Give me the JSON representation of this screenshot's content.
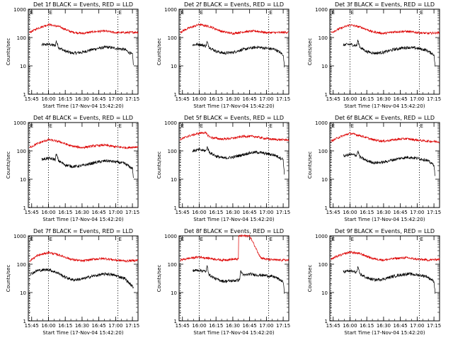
{
  "figure": {
    "xlabel": "Start Time (17-Nov-04 15:42:20)",
    "ylabel": "Counts/sec",
    "x_tick_labels": [
      "15:45",
      "16:00",
      "16:15",
      "16:30",
      "16:45",
      "17:00",
      "17:15"
    ],
    "y_tick_labels": [
      "1",
      "10",
      "100",
      "1000"
    ],
    "marker_label": "E",
    "colors": {
      "events": "#000000",
      "lld": "#dd0000",
      "frame": "#000000"
    }
  },
  "chart_data": [
    {
      "type": "line",
      "title": "Det 1f BLACK = Events, RED = LLD",
      "yscale": "log",
      "ylim": [
        1,
        1000
      ],
      "xlim": [
        "15:42",
        "17:20"
      ],
      "grid": false,
      "markers": [
        "15:43",
        "16:00",
        "17:02"
      ],
      "series": [
        {
          "name": "Events",
          "color": "#000000",
          "t_start": "15:54",
          "t_end": "17:16",
          "x": [
            "15:54",
            "16:00",
            "16:06",
            "16:07",
            "16:09",
            "16:15",
            "16:22",
            "16:30",
            "16:38",
            "16:45",
            "16:52",
            "17:00",
            "17:08",
            "17:15",
            "17:16"
          ],
          "y": [
            55,
            58,
            52,
            75,
            45,
            33,
            28,
            30,
            37,
            42,
            46,
            42,
            38,
            25,
            10
          ]
        },
        {
          "name": "LLD",
          "color": "#dd0000",
          "t_start": "15:43",
          "t_end": "17:20",
          "x": [
            "15:43",
            "15:50",
            "16:00",
            "16:10",
            "16:20",
            "16:30",
            "16:40",
            "16:50",
            "17:00",
            "17:10",
            "17:20"
          ],
          "y": [
            150,
            210,
            290,
            240,
            160,
            140,
            160,
            170,
            150,
            150,
            155
          ]
        }
      ]
    },
    {
      "type": "line",
      "title": "Det 2f BLACK = Events, RED = LLD",
      "yscale": "log",
      "ylim": [
        1,
        1000
      ],
      "xlim": [
        "15:42",
        "17:20"
      ],
      "grid": false,
      "markers": [
        "15:43",
        "16:00",
        "17:02"
      ],
      "series": [
        {
          "name": "Events",
          "color": "#000000",
          "t_start": "15:54",
          "t_end": "17:16",
          "x": [
            "15:54",
            "16:00",
            "16:06",
            "16:07",
            "16:09",
            "16:15",
            "16:22",
            "16:30",
            "16:38",
            "16:45",
            "16:52",
            "17:00",
            "17:08",
            "17:15",
            "17:16"
          ],
          "y": [
            55,
            58,
            50,
            70,
            45,
            33,
            28,
            30,
            37,
            42,
            46,
            42,
            38,
            25,
            10
          ]
        },
        {
          "name": "LLD",
          "color": "#dd0000",
          "t_start": "15:43",
          "t_end": "17:20",
          "x": [
            "15:43",
            "15:50",
            "16:00",
            "16:10",
            "16:20",
            "16:30",
            "16:40",
            "16:50",
            "17:00",
            "17:10",
            "17:20"
          ],
          "y": [
            155,
            210,
            290,
            240,
            165,
            140,
            160,
            170,
            150,
            150,
            155
          ]
        }
      ]
    },
    {
      "type": "line",
      "title": "Det 3f BLACK = Events, RED = LLD",
      "yscale": "log",
      "ylim": [
        1,
        1000
      ],
      "xlim": [
        "15:42",
        "17:20"
      ],
      "grid": false,
      "markers": [
        "15:43",
        "16:00",
        "17:02"
      ],
      "series": [
        {
          "name": "Events",
          "color": "#000000",
          "t_start": "15:54",
          "t_end": "17:16",
          "x": [
            "15:54",
            "16:00",
            "16:06",
            "16:07",
            "16:09",
            "16:15",
            "16:22",
            "16:30",
            "16:38",
            "16:45",
            "16:52",
            "17:00",
            "17:08",
            "17:15",
            "17:16"
          ],
          "y": [
            55,
            58,
            52,
            78,
            45,
            32,
            28,
            30,
            37,
            42,
            45,
            42,
            36,
            25,
            10
          ]
        },
        {
          "name": "LLD",
          "color": "#dd0000",
          "t_start": "15:43",
          "t_end": "17:20",
          "x": [
            "15:43",
            "15:50",
            "16:00",
            "16:10",
            "16:20",
            "16:30",
            "16:40",
            "16:50",
            "17:00",
            "17:10",
            "17:20"
          ],
          "y": [
            150,
            200,
            280,
            230,
            160,
            140,
            160,
            165,
            150,
            140,
            150
          ]
        }
      ]
    },
    {
      "type": "line",
      "title": "Det 4f BLACK = Events, RED = LLD",
      "yscale": "log",
      "ylim": [
        1,
        1000
      ],
      "xlim": [
        "15:42",
        "17:20"
      ],
      "grid": false,
      "markers": [
        "15:43",
        "16:00",
        "17:02"
      ],
      "series": [
        {
          "name": "Events",
          "color": "#000000",
          "t_start": "15:54",
          "t_end": "17:16",
          "x": [
            "15:54",
            "16:00",
            "16:06",
            "16:07",
            "16:09",
            "16:15",
            "16:22",
            "16:30",
            "16:38",
            "16:45",
            "16:52",
            "17:00",
            "17:08",
            "17:15",
            "17:16"
          ],
          "y": [
            50,
            55,
            50,
            78,
            45,
            32,
            28,
            30,
            36,
            41,
            45,
            41,
            36,
            24,
            10
          ]
        },
        {
          "name": "LLD",
          "color": "#dd0000",
          "t_start": "15:43",
          "t_end": "17:20",
          "x": [
            "15:43",
            "15:50",
            "16:00",
            "16:10",
            "16:20",
            "16:30",
            "16:40",
            "16:50",
            "17:00",
            "17:10",
            "17:20"
          ],
          "y": [
            130,
            180,
            250,
            210,
            150,
            130,
            150,
            160,
            140,
            130,
            140
          ]
        }
      ]
    },
    {
      "type": "line",
      "title": "Det 5f BLACK = Events, RED = LLD",
      "yscale": "log",
      "ylim": [
        1,
        1000
      ],
      "xlim": [
        "15:42",
        "17:20"
      ],
      "grid": false,
      "markers": [
        "15:43",
        "16:00",
        "17:02"
      ],
      "series": [
        {
          "name": "Events",
          "color": "#000000",
          "t_start": "15:54",
          "t_end": "17:16",
          "x": [
            "15:54",
            "16:00",
            "16:06",
            "16:07",
            "16:09",
            "16:15",
            "16:22",
            "16:30",
            "16:38",
            "16:45",
            "16:52",
            "17:00",
            "17:08",
            "17:15",
            "17:16"
          ],
          "y": [
            100,
            110,
            100,
            140,
            90,
            65,
            55,
            60,
            72,
            85,
            90,
            80,
            70,
            50,
            15
          ]
        },
        {
          "name": "LLD",
          "color": "#dd0000",
          "t_start": "15:43",
          "t_end": "17:20",
          "x": [
            "15:43",
            "15:50",
            "16:00",
            "16:05",
            "16:10",
            "16:20",
            "16:30",
            "16:40",
            "16:50",
            "17:00",
            "17:10",
            "17:20"
          ],
          "y": [
            250,
            330,
            420,
            450,
            300,
            260,
            280,
            330,
            320,
            270,
            250,
            245
          ]
        }
      ]
    },
    {
      "type": "line",
      "title": "Det 6f BLACK = Events, RED = LLD",
      "yscale": "log",
      "ylim": [
        1,
        1000
      ],
      "xlim": [
        "15:42",
        "17:20"
      ],
      "grid": false,
      "markers": [
        "15:43",
        "16:00",
        "17:02"
      ],
      "series": [
        {
          "name": "Events",
          "color": "#000000",
          "t_start": "15:54",
          "t_end": "17:16",
          "x": [
            "15:54",
            "16:00",
            "16:06",
            "16:07",
            "16:09",
            "16:15",
            "16:22",
            "16:30",
            "16:38",
            "16:45",
            "16:52",
            "17:00",
            "17:08",
            "17:15",
            "17:16"
          ],
          "y": [
            65,
            75,
            70,
            100,
            60,
            45,
            38,
            40,
            48,
            55,
            60,
            55,
            48,
            32,
            12
          ]
        },
        {
          "name": "LLD",
          "color": "#dd0000",
          "t_start": "15:43",
          "t_end": "17:20",
          "x": [
            "15:43",
            "15:50",
            "16:00",
            "16:10",
            "16:20",
            "16:30",
            "16:40",
            "16:50",
            "17:00",
            "17:10",
            "17:20"
          ],
          "y": [
            220,
            300,
            420,
            340,
            250,
            220,
            250,
            270,
            240,
            220,
            210
          ]
        }
      ]
    },
    {
      "type": "line",
      "title": "Det 7f BLACK = Events, RED = LLD",
      "yscale": "log",
      "ylim": [
        1,
        1000
      ],
      "xlim": [
        "15:42",
        "17:20"
      ],
      "grid": false,
      "markers": [
        "15:43",
        "16:00",
        "17:02"
      ],
      "series": [
        {
          "name": "Events",
          "color": "#000000",
          "t_start": "15:44",
          "t_end": "17:16",
          "x": [
            "15:44",
            "15:50",
            "16:00",
            "16:08",
            "16:15",
            "16:22",
            "16:30",
            "16:38",
            "16:45",
            "16:52",
            "17:00",
            "17:08",
            "17:16"
          ],
          "y": [
            45,
            60,
            65,
            50,
            35,
            28,
            30,
            37,
            42,
            46,
            40,
            32,
            15
          ]
        },
        {
          "name": "LLD",
          "color": "#dd0000",
          "t_start": "15:43",
          "t_end": "17:20",
          "x": [
            "15:43",
            "15:50",
            "16:00",
            "16:10",
            "16:20",
            "16:30",
            "16:40",
            "16:50",
            "17:00",
            "17:10",
            "17:20"
          ],
          "y": [
            130,
            200,
            260,
            210,
            150,
            130,
            150,
            160,
            140,
            130,
            140
          ]
        }
      ]
    },
    {
      "type": "line",
      "title": "Det 8f BLACK = Events, RED = LLD",
      "yscale": "log",
      "ylim": [
        1,
        1000
      ],
      "xlim": [
        "15:42",
        "17:20"
      ],
      "grid": false,
      "markers": [
        "15:43",
        "16:00",
        "17:02"
      ],
      "series": [
        {
          "name": "Events",
          "color": "#000000",
          "t_start": "15:54",
          "t_end": "17:16",
          "x": [
            "15:54",
            "16:00",
            "16:06",
            "16:07",
            "16:09",
            "16:15",
            "16:22",
            "16:30",
            "16:36",
            "16:37",
            "16:40",
            "16:45",
            "16:52",
            "17:00",
            "17:08",
            "17:15",
            "17:16"
          ],
          "y": [
            60,
            62,
            55,
            85,
            42,
            30,
            25,
            26,
            28,
            55,
            40,
            45,
            42,
            40,
            35,
            24,
            10
          ]
        },
        {
          "name": "LLD",
          "color": "#dd0000",
          "t_start": "15:43",
          "t_end": "17:20",
          "x": [
            "15:43",
            "15:50",
            "16:00",
            "16:10",
            "16:20",
            "16:30",
            "16:35",
            "16:35",
            "16:45",
            "16:55",
            "17:00",
            "17:10",
            "17:20"
          ],
          "y": [
            140,
            160,
            180,
            160,
            140,
            150,
            150,
            1000,
            1000,
            170,
            150,
            140,
            140
          ]
        }
      ]
    },
    {
      "type": "line",
      "title": "Det 9f BLACK = Events, RED = LLD",
      "yscale": "log",
      "ylim": [
        1,
        1000
      ],
      "xlim": [
        "15:42",
        "17:20"
      ],
      "grid": false,
      "markers": [
        "15:43",
        "16:00",
        "17:02"
      ],
      "series": [
        {
          "name": "Events",
          "color": "#000000",
          "t_start": "15:54",
          "t_end": "17:16",
          "x": [
            "15:54",
            "16:00",
            "16:06",
            "16:07",
            "16:09",
            "16:15",
            "16:22",
            "16:30",
            "16:38",
            "16:45",
            "16:52",
            "17:00",
            "17:08",
            "17:15",
            "17:16"
          ],
          "y": [
            55,
            58,
            52,
            75,
            45,
            33,
            28,
            30,
            37,
            42,
            46,
            42,
            38,
            25,
            10
          ]
        },
        {
          "name": "LLD",
          "color": "#dd0000",
          "t_start": "15:43",
          "t_end": "17:20",
          "x": [
            "15:43",
            "15:50",
            "16:00",
            "16:10",
            "16:20",
            "16:30",
            "16:40",
            "16:50",
            "17:00",
            "17:10",
            "17:20"
          ],
          "y": [
            150,
            200,
            270,
            230,
            160,
            140,
            160,
            170,
            150,
            140,
            150
          ]
        }
      ]
    }
  ]
}
